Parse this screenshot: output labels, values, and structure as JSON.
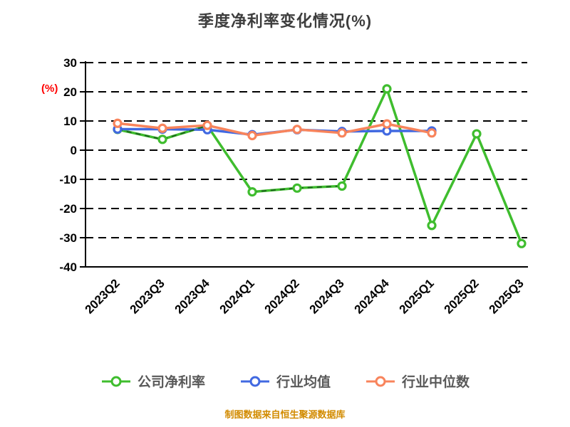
{
  "title": "季度净利率变化情况(%)",
  "y_axis_label": "(%)",
  "footer": "制图数据来自恒生聚源数据库",
  "chart_data": {
    "type": "line",
    "categories": [
      "2023Q2",
      "2023Q3",
      "2023Q4",
      "2024Q1",
      "2024Q2",
      "2024Q3",
      "2024Q4",
      "2025Q1",
      "2025Q2",
      "2025Q3"
    ],
    "series": [
      {
        "name": "公司净利率",
        "color": "#3fbd2e",
        "marker": "circle",
        "values": [
          7.1,
          3.7,
          8.4,
          -14.3,
          -13.0,
          -12.3,
          21.0,
          -25.8,
          5.6,
          -32.0
        ]
      },
      {
        "name": "行业均值",
        "color": "#4169e1",
        "marker": "circle",
        "values": [
          7.2,
          7.2,
          7.0,
          5.3,
          7.0,
          6.4,
          6.6,
          6.6,
          null,
          null
        ]
      },
      {
        "name": "行业中位数",
        "color": "#f8845c",
        "marker": "circle",
        "values": [
          9.2,
          7.5,
          8.5,
          5.0,
          7.1,
          5.9,
          9.0,
          5.9,
          null,
          null
        ]
      }
    ],
    "ylim": [
      -40,
      30
    ],
    "yticks": [
      30,
      20,
      10,
      0,
      -10,
      -20,
      -30,
      -40
    ],
    "grid": "horizontal-dashed-black",
    "legend_position": "bottom",
    "dashed_overlay": {
      "series_index": 0,
      "segments": [
        [
          0,
          2
        ],
        [
          3,
          5
        ]
      ],
      "color": "#1e651e"
    }
  }
}
